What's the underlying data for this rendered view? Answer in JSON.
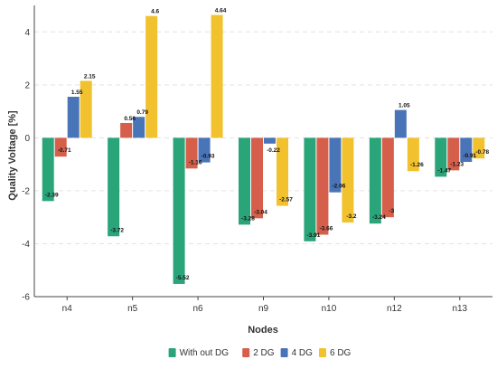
{
  "chart_data": {
    "type": "bar",
    "title": "",
    "xlabel": "Nodes",
    "ylabel": "Quality Voltage [%]",
    "ylim": [
      -6,
      5
    ],
    "yticks": [
      -6,
      -4,
      -2,
      0,
      2,
      4
    ],
    "grid": true,
    "legend_position": "bottom",
    "categories": [
      "n4",
      "n5",
      "n6",
      "n9",
      "n10",
      "n12",
      "n13"
    ],
    "series": [
      {
        "name": "With out DG",
        "color": "#2aa57a",
        "values": [
          -2.39,
          -3.72,
          -5.52,
          -3.28,
          -3.91,
          -3.24,
          -1.47
        ],
        "labels": [
          "-2.39",
          "-3.72",
          "-5.52",
          "-3.28",
          "-3.91",
          "-3.24",
          "-1.47"
        ]
      },
      {
        "name": "2 DG",
        "color": "#d55f4a",
        "values": [
          -0.71,
          0.56,
          -1.16,
          -3.04,
          -3.66,
          -3.0,
          -1.23
        ],
        "labels": [
          "-0.71",
          "0.56",
          "-1.16",
          "-3.04",
          "-3.66",
          "-3",
          "-1.23"
        ]
      },
      {
        "name": "4 DG",
        "color": "#4a74b8",
        "values": [
          1.55,
          0.79,
          -0.93,
          -0.22,
          -2.06,
          1.05,
          -0.91
        ],
        "labels": [
          "1.55",
          "0.79",
          "-0.93",
          "-0.22",
          "-2.06",
          "1.05",
          "-0.91"
        ]
      },
      {
        "name": "6 DG",
        "color": "#f2c12e",
        "values": [
          2.15,
          4.6,
          4.64,
          -2.57,
          -3.2,
          -1.26,
          -0.78
        ],
        "labels": [
          "2.15",
          "4.6",
          "4.64",
          "-2.57",
          "-3.2",
          "-1.26",
          "-0.78"
        ]
      }
    ]
  }
}
